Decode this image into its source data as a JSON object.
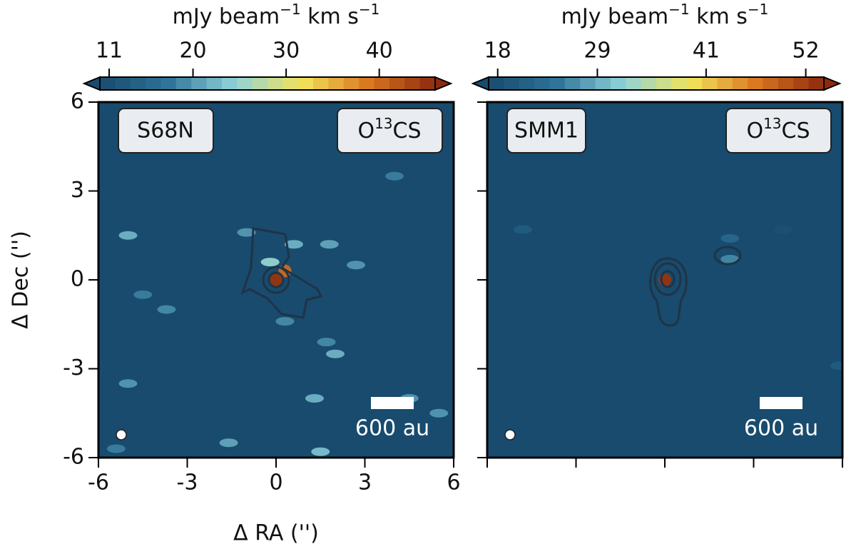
{
  "chart_data": [
    {
      "type": "image",
      "source": "S68N",
      "molecule": {
        "base": "O",
        "sup": "13",
        "rest": "CS"
      },
      "colorbar_label": {
        "parts": [
          "mJy beam",
          "−1",
          " km s",
          "−1"
        ]
      },
      "clim": [
        10,
        46
      ],
      "cticks": [
        11,
        20,
        30,
        40
      ],
      "colormap": [
        "#184b6e",
        "#2f7297",
        "#8fd2da",
        "#f2e45c",
        "#d9771f",
        "#8c2a0e"
      ],
      "xlim": [
        -6,
        6
      ],
      "ylim": [
        -6,
        6
      ],
      "xticks": [
        -6,
        -3,
        0,
        3,
        6
      ],
      "yticks": [
        -6,
        -3,
        0,
        3,
        6
      ],
      "show_tick_labels": true,
      "xlabel": "Δ RA ('')",
      "ylabel": "Δ Dec ('')",
      "scalebar_label": "600 au",
      "features": [
        {
          "x": 0,
          "y": 0,
          "value": 45
        },
        {
          "x": 0.3,
          "y": 0.3,
          "value": 40
        },
        {
          "x": -0.2,
          "y": 0.6,
          "value": 25
        },
        {
          "x": 0.6,
          "y": 1.2,
          "value": 22
        },
        {
          "x": -1,
          "y": 1.6,
          "value": 20
        },
        {
          "x": 1.8,
          "y": 1.2,
          "value": 21
        },
        {
          "x": -5,
          "y": 1.5,
          "value": 22
        },
        {
          "x": -3.7,
          "y": -1,
          "value": 19
        },
        {
          "x": -5,
          "y": -3.5,
          "value": 20
        },
        {
          "x": 1.3,
          "y": -4,
          "value": 22
        },
        {
          "x": 2,
          "y": -2.5,
          "value": 22
        },
        {
          "x": 4.5,
          "y": -4,
          "value": 20
        },
        {
          "x": -1.6,
          "y": -5.5,
          "value": 21
        },
        {
          "x": 1.5,
          "y": -5.8,
          "value": 23
        },
        {
          "x": 4,
          "y": 3.5,
          "value": 18
        },
        {
          "x": -4.5,
          "y": -0.5,
          "value": 18
        },
        {
          "x": 2.7,
          "y": 0.5,
          "value": 20
        },
        {
          "x": -5.4,
          "y": -5.7,
          "value": 18
        },
        {
          "x": 5.5,
          "y": -4.5,
          "value": 20
        },
        {
          "x": 0.3,
          "y": -1.4,
          "value": 19
        },
        {
          "x": 1.7,
          "y": -2.1,
          "value": 19
        }
      ]
    },
    {
      "type": "image",
      "source": "SMM1",
      "molecule": {
        "base": "O",
        "sup": "13",
        "rest": "CS"
      },
      "colorbar_label": {
        "parts": [
          "mJy beam",
          "−1",
          " km s",
          "−1"
        ]
      },
      "clim": [
        17,
        54
      ],
      "cticks": [
        18,
        29,
        41,
        52
      ],
      "colormap": [
        "#184b6e",
        "#2f7297",
        "#8fd2da",
        "#f2e45c",
        "#d9771f",
        "#8c2a0e"
      ],
      "xlim": [
        -6,
        6
      ],
      "ylim": [
        -6,
        6
      ],
      "xticks": [
        -6,
        -3,
        0,
        3,
        6
      ],
      "yticks": [
        -6,
        -3,
        0,
        3,
        6
      ],
      "show_tick_labels": false,
      "scalebar_label": "600 au",
      "features": [
        {
          "x": 0,
          "y": 0,
          "value": 53
        },
        {
          "x": 2.2,
          "y": 0.7,
          "value": 26
        },
        {
          "x": 2.2,
          "y": 1.4,
          "value": 22
        },
        {
          "x": -4.8,
          "y": 1.7,
          "value": 20
        },
        {
          "x": 4,
          "y": 1.7,
          "value": 18
        },
        {
          "x": 5.9,
          "y": -2.9,
          "value": 20
        }
      ]
    }
  ]
}
